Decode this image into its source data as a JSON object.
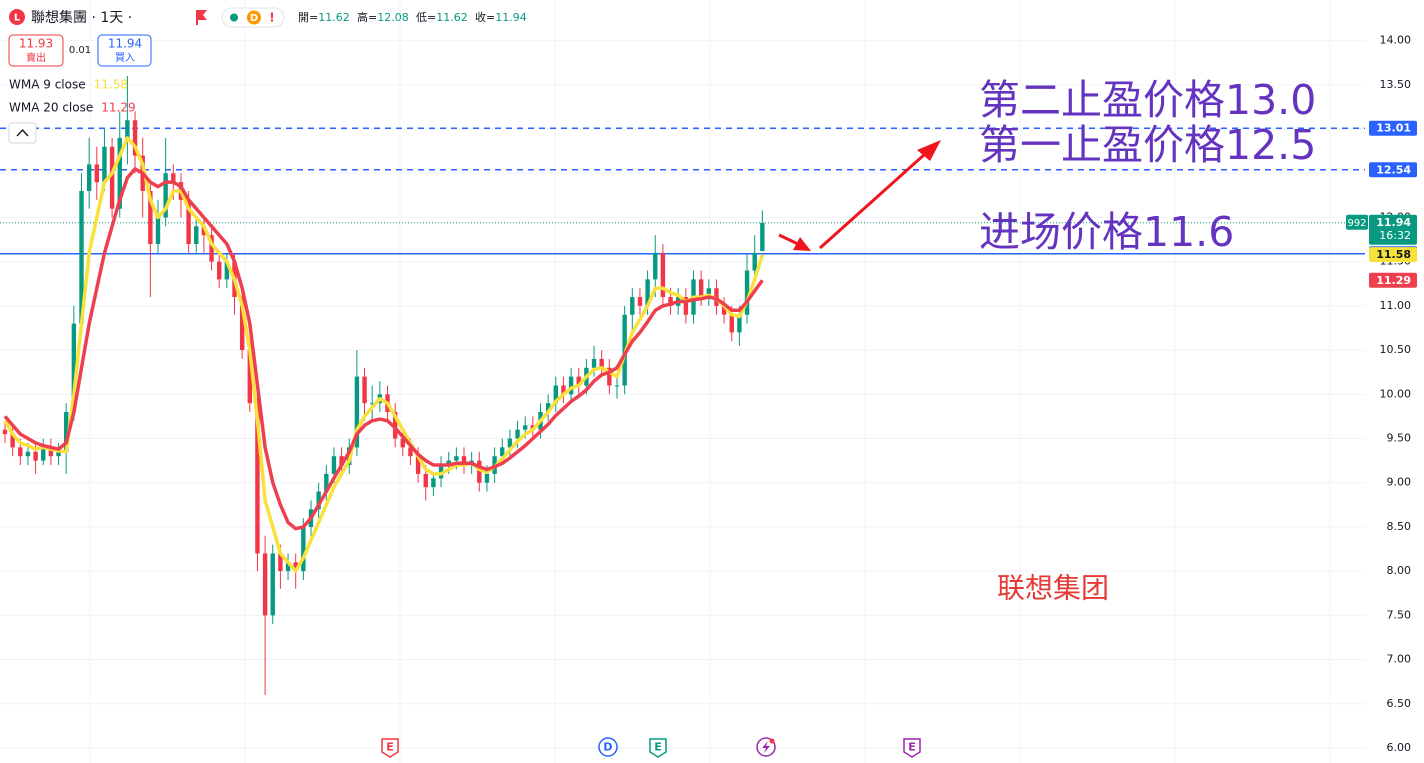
{
  "chart_data": {
    "type": "candlestick",
    "logo": "L",
    "title": "聯想集團 · 1天 ·",
    "status_icons": [
      "D",
      "!"
    ],
    "ohlc": [
      {
        "label": "開=",
        "value": 11.62
      },
      {
        "label": "高=",
        "value": 12.08
      },
      {
        "label": "低=",
        "value": 11.62
      },
      {
        "label": "收=",
        "value": 11.94
      }
    ],
    "sell_price": 11.93,
    "sell_label": "賣出",
    "spread": 0.01,
    "buy_price": 11.94,
    "buy_label": "買入",
    "up_color": "#089981",
    "down_color": "#f23645",
    "open": [
      9.6,
      9.55,
      9.4,
      9.3,
      9.35,
      9.25,
      9.4,
      9.3,
      9.35,
      9.8,
      10.8,
      12.3,
      12.6,
      12.4,
      12.8,
      12.1,
      12.9,
      13.1,
      12.7,
      12.3,
      11.7,
      12.0,
      12.5,
      12.4,
      12.2,
      11.7,
      11.9,
      11.8,
      11.5,
      11.3,
      11.5,
      11.1,
      10.5,
      9.9,
      8.2,
      7.5,
      8.2,
      8.0,
      8.1,
      8.0,
      8.5,
      8.7,
      8.9,
      9.1,
      9.3,
      9.2,
      9.4,
      10.2,
      9.9,
      9.9,
      10.0,
      9.8,
      9.5,
      9.4,
      9.3,
      9.1,
      8.95,
      9.05,
      9.2,
      9.25,
      9.3,
      9.2,
      9.25,
      9.0,
      9.1,
      9.3,
      9.4,
      9.5,
      9.6,
      9.65,
      9.6,
      9.8,
      9.9,
      10.1,
      10.0,
      10.2,
      10.1,
      10.3,
      10.4,
      10.3,
      10.1,
      10.1,
      10.9,
      11.1,
      11.0,
      11.3,
      11.6,
      11.1,
      11.0,
      11.1,
      10.9,
      11.3,
      11.1,
      11.2,
      11.0,
      10.9,
      10.7,
      10.9,
      11.4,
      11.62
    ],
    "high": [
      9.7,
      9.65,
      9.5,
      9.45,
      9.45,
      9.5,
      9.5,
      9.45,
      9.9,
      11.0,
      12.5,
      12.9,
      12.8,
      13.0,
      12.9,
      13.2,
      13.6,
      13.2,
      12.9,
      12.4,
      12.2,
      12.9,
      12.6,
      12.5,
      12.3,
      12.0,
      12.0,
      11.9,
      11.6,
      11.6,
      11.6,
      11.2,
      10.6,
      10.0,
      8.4,
      8.3,
      8.3,
      8.2,
      8.2,
      8.6,
      8.8,
      9.0,
      9.2,
      9.4,
      9.4,
      9.5,
      10.5,
      10.3,
      10.1,
      10.15,
      10.1,
      9.9,
      9.6,
      9.5,
      9.4,
      9.2,
      9.1,
      9.3,
      9.35,
      9.4,
      9.4,
      9.35,
      9.35,
      9.2,
      9.4,
      9.5,
      9.6,
      9.7,
      9.75,
      9.75,
      9.9,
      10.0,
      10.2,
      10.2,
      10.3,
      10.3,
      10.4,
      10.55,
      10.5,
      10.4,
      10.2,
      11.0,
      11.2,
      11.2,
      11.4,
      11.8,
      11.7,
      11.2,
      11.2,
      11.2,
      11.4,
      11.4,
      11.3,
      11.3,
      11.1,
      11.0,
      11.0,
      11.6,
      11.8,
      12.08
    ],
    "low": [
      9.45,
      9.3,
      9.2,
      9.2,
      9.1,
      9.2,
      9.2,
      9.2,
      9.1,
      9.7,
      10.7,
      12.1,
      12.2,
      12.3,
      12.0,
      12.0,
      12.6,
      12.5,
      12.0,
      11.1,
      11.6,
      11.9,
      12.2,
      12.0,
      11.6,
      11.6,
      11.6,
      11.4,
      11.2,
      11.2,
      10.9,
      10.4,
      9.8,
      8.0,
      6.6,
      7.4,
      7.8,
      7.9,
      7.8,
      7.9,
      8.4,
      8.6,
      8.8,
      9.0,
      9.1,
      9.1,
      9.3,
      9.7,
      9.7,
      9.8,
      9.7,
      9.4,
      9.3,
      9.2,
      9.0,
      8.8,
      8.85,
      8.95,
      9.1,
      9.15,
      9.1,
      9.1,
      8.9,
      8.9,
      9.0,
      9.2,
      9.3,
      9.4,
      9.5,
      9.5,
      9.5,
      9.7,
      9.8,
      9.9,
      9.9,
      10.0,
      10.0,
      10.2,
      10.2,
      10.0,
      9.95,
      10.0,
      10.7,
      10.9,
      10.9,
      11.1,
      11.0,
      10.9,
      10.9,
      10.8,
      10.8,
      11.0,
      11.0,
      10.9,
      10.8,
      10.6,
      10.55,
      10.8,
      11.3,
      11.62
    ],
    "close": [
      9.55,
      9.4,
      9.3,
      9.35,
      9.25,
      9.4,
      9.3,
      9.35,
      9.8,
      10.8,
      12.3,
      12.6,
      12.4,
      12.8,
      12.1,
      12.9,
      13.1,
      12.7,
      12.3,
      11.7,
      12.0,
      12.5,
      12.4,
      12.2,
      11.7,
      11.9,
      11.8,
      11.5,
      11.3,
      11.5,
      11.1,
      10.5,
      9.9,
      8.2,
      7.5,
      8.2,
      8.0,
      8.1,
      8.0,
      8.5,
      8.7,
      8.9,
      9.1,
      9.3,
      9.2,
      9.4,
      10.2,
      9.9,
      9.9,
      10.0,
      9.8,
      9.5,
      9.4,
      9.3,
      9.1,
      8.95,
      9.05,
      9.2,
      9.25,
      9.3,
      9.2,
      9.25,
      9.0,
      9.1,
      9.3,
      9.4,
      9.5,
      9.6,
      9.65,
      9.6,
      9.8,
      9.9,
      10.1,
      10.0,
      10.2,
      10.1,
      10.3,
      10.4,
      10.3,
      10.1,
      10.1,
      10.9,
      11.1,
      11.0,
      11.3,
      11.6,
      11.1,
      11.0,
      11.1,
      10.9,
      11.3,
      11.1,
      11.2,
      11.0,
      10.9,
      10.7,
      10.9,
      11.4,
      11.6,
      11.94
    ],
    "series": [
      {
        "name": "WMA 9 close",
        "color": "#f7e13a",
        "values": [
          9.7,
          9.55,
          9.45,
          9.42,
          9.38,
          9.4,
          9.38,
          9.36,
          9.35,
          10.0,
          10.8,
          11.6,
          12.0,
          12.4,
          12.5,
          12.7,
          12.9,
          12.8,
          12.6,
          12.2,
          12.0,
          12.1,
          12.3,
          12.3,
          12.1,
          12.0,
          11.9,
          11.7,
          11.6,
          11.5,
          11.3,
          11.0,
          10.5,
          9.7,
          8.8,
          8.5,
          8.2,
          8.1,
          8.0,
          8.15,
          8.35,
          8.55,
          8.75,
          8.95,
          9.1,
          9.25,
          9.6,
          9.75,
          9.85,
          9.95,
          9.9,
          9.75,
          9.6,
          9.45,
          9.3,
          9.15,
          9.1,
          9.1,
          9.15,
          9.2,
          9.2,
          9.22,
          9.15,
          9.12,
          9.18,
          9.27,
          9.37,
          9.47,
          9.55,
          9.6,
          9.7,
          9.8,
          9.92,
          10.0,
          10.07,
          10.1,
          10.2,
          10.28,
          10.3,
          10.25,
          10.2,
          10.45,
          10.7,
          10.85,
          11.0,
          11.2,
          11.2,
          11.15,
          11.12,
          11.05,
          11.1,
          11.1,
          11.12,
          11.08,
          11.0,
          10.9,
          10.88,
          11.05,
          11.3,
          11.58
        ]
      },
      {
        "name": "WMA 20 close",
        "color": "#ee3f4f",
        "values": [
          9.75,
          9.65,
          9.55,
          9.5,
          9.45,
          9.42,
          9.4,
          9.38,
          9.45,
          9.8,
          10.3,
          10.8,
          11.2,
          11.6,
          11.9,
          12.2,
          12.45,
          12.55,
          12.5,
          12.4,
          12.35,
          12.4,
          12.4,
          12.35,
          12.2,
          12.1,
          12.0,
          11.9,
          11.8,
          11.7,
          11.5,
          11.2,
          10.8,
          10.1,
          9.4,
          9.0,
          8.75,
          8.55,
          8.48,
          8.5,
          8.6,
          8.75,
          8.9,
          9.05,
          9.2,
          9.35,
          9.55,
          9.65,
          9.7,
          9.72,
          9.7,
          9.62,
          9.52,
          9.42,
          9.32,
          9.25,
          9.2,
          9.2,
          9.2,
          9.22,
          9.22,
          9.22,
          9.18,
          9.15,
          9.18,
          9.22,
          9.28,
          9.35,
          9.42,
          9.5,
          9.58,
          9.66,
          9.76,
          9.84,
          9.92,
          9.98,
          10.05,
          10.15,
          10.22,
          10.25,
          10.3,
          10.45,
          10.6,
          10.7,
          10.82,
          10.95,
          11.0,
          11.02,
          11.05,
          11.05,
          11.07,
          11.08,
          11.1,
          11.08,
          11.02,
          10.95,
          10.95,
          11.05,
          11.17,
          11.29
        ]
      }
    ],
    "ylim": [
      5.83,
      14.46
    ],
    "yticks": [
      {
        "value": 6,
        "label": "6.00"
      },
      {
        "value": 6.5,
        "label": "6.50"
      },
      {
        "value": 7,
        "label": "7.00"
      },
      {
        "value": 7.5,
        "label": "7.50"
      },
      {
        "value": 8,
        "label": "8.00"
      },
      {
        "value": 8.5,
        "label": "8.50"
      },
      {
        "value": 9,
        "label": "9.00"
      },
      {
        "value": 9.5,
        "label": "9.50"
      },
      {
        "value": 10,
        "label": "10.00"
      },
      {
        "value": 10.5,
        "label": "10.50"
      },
      {
        "value": 11,
        "label": "11.00"
      },
      {
        "value": 11.5,
        "label": "11.50"
      },
      {
        "value": 12,
        "label": "12.00"
      },
      {
        "value": 12.5,
        "label": "12.50"
      },
      {
        "value": 13,
        "label": "13.00"
      },
      {
        "value": 13.5,
        "label": "13.50"
      },
      {
        "value": 14,
        "label": "14.00"
      }
    ],
    "grid": true,
    "price_lines": [
      {
        "value": 13.01,
        "color": "#2962ff",
        "style": "dashed"
      },
      {
        "value": 12.54,
        "color": "#2962ff",
        "style": "dashed"
      },
      {
        "value": 11.59,
        "color": "#2962ff",
        "style": "solid"
      }
    ],
    "badge": 992,
    "countdown": "16:32",
    "annotations": [
      "第二止盈价格13.0",
      "第一止盈价格12.5",
      "进场价格11.6",
      "联想集团"
    ],
    "event_markers": [
      "E",
      "D",
      "E",
      "E"
    ]
  }
}
